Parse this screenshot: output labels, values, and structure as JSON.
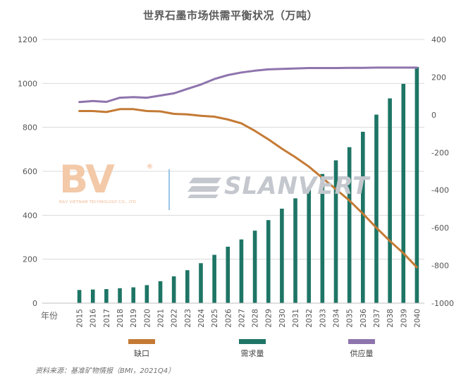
{
  "title": "世界石墨市场供需平衡状况（万吨）",
  "source": "资料来源：基准矿物情报（BMI，2021Q4）",
  "watermarks": {
    "bv_logo": "BV",
    "bv_registered": "®",
    "bv_subtitle": "B&V VIETNAM TECHNOLOGY CO., LTD",
    "slanvert_logo": "SLANVERT"
  },
  "colors": {
    "shortage": "#c47a35",
    "demand": "#1e7565",
    "supply": "#8e74ad",
    "grid": "#d9d9d9",
    "axis_text": "#555555"
  },
  "chart_data": {
    "type": "bar",
    "title": "世界石墨市场供需平衡状况（万吨）",
    "xlabel": "年份",
    "categories": [
      "2015",
      "2016",
      "2017",
      "2018",
      "2019",
      "2020",
      "2021",
      "2022",
      "2023",
      "2024",
      "2025",
      "2026",
      "2027",
      "2028",
      "2029",
      "2030",
      "2031",
      "2032",
      "2033",
      "2034",
      "2035",
      "2036",
      "2037",
      "2038",
      "2039",
      "2040"
    ],
    "y_left": {
      "ylim": [
        0,
        1200
      ],
      "ticks": [
        0,
        200,
        400,
        600,
        800,
        1000,
        1200
      ]
    },
    "y_right": {
      "ylim": [
        -1000,
        400
      ],
      "ticks": [
        -1000,
        -800,
        -600,
        -400,
        -200,
        0,
        200,
        400
      ]
    },
    "grid": true,
    "legend_position": "bottom",
    "series": [
      {
        "name": "缺口",
        "type": "line",
        "axis": "right",
        "values": [
          20,
          20,
          15,
          30,
          30,
          20,
          18,
          5,
          2,
          -5,
          -10,
          -25,
          -45,
          -85,
          -130,
          -180,
          -225,
          -275,
          -335,
          -395,
          -455,
          -525,
          -600,
          -670,
          -735,
          -810
        ]
      },
      {
        "name": "需求量",
        "type": "bar",
        "axis": "left",
        "values": [
          60,
          62,
          64,
          68,
          72,
          82,
          100,
          122,
          150,
          182,
          220,
          257,
          290,
          330,
          378,
          430,
          477,
          527,
          588,
          650,
          710,
          780,
          858,
          932,
          998,
          1075
        ]
      },
      {
        "name": "供应量",
        "type": "line",
        "axis": "left",
        "values": [
          915,
          920,
          916,
          935,
          938,
          935,
          945,
          955,
          975,
          995,
          1020,
          1038,
          1050,
          1058,
          1064,
          1066,
          1068,
          1070,
          1070,
          1070,
          1071,
          1071,
          1072,
          1072,
          1072,
          1072
        ]
      }
    ]
  }
}
